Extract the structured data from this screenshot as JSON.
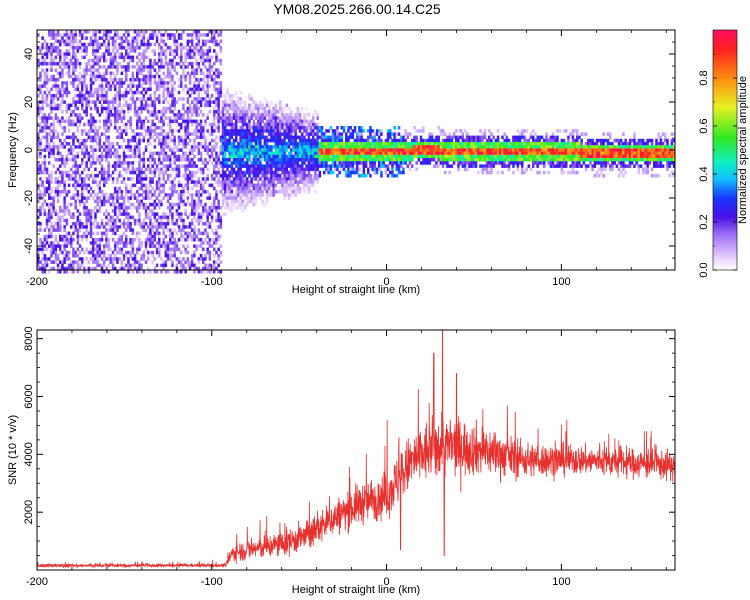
{
  "title": "YM08.2025.266.00.14.C25",
  "chart_data": [
    {
      "type": "heatmap",
      "name": "spectrogram",
      "xlabel": "Height of straight line (km)",
      "ylabel": "Frequency (Hz)",
      "xlim": [
        -200,
        165
      ],
      "ylim": [
        -50,
        50
      ],
      "xticks": [
        -200,
        -100,
        0,
        100
      ],
      "yticks": [
        -40,
        -20,
        0,
        20,
        40
      ],
      "colorbar": {
        "label": "Normalized spectral amplitude",
        "range": [
          0,
          1
        ],
        "ticks": [
          0.0,
          0.2,
          0.4,
          0.6,
          0.8
        ]
      },
      "regions": [
        {
          "x_range": [
            -200,
            -95
          ],
          "description": "diffuse low-amplitude noise across all frequencies"
        },
        {
          "x_range": [
            -100,
            -40
          ],
          "freq_center": 0,
          "freq_halfwidth": 20,
          "amplitude": 0.25
        },
        {
          "x_range": [
            -40,
            165
          ],
          "freq_center": 0,
          "freq_halfwidth": 4,
          "amplitude": 0.9
        }
      ]
    },
    {
      "type": "line",
      "name": "snr",
      "xlabel": "Height of straight line (km)",
      "ylabel": "SNR (10 * v/v)",
      "xlim": [
        -200,
        165
      ],
      "ylim": [
        0,
        8300
      ],
      "xticks": [
        -200,
        -100,
        0,
        100
      ],
      "yticks": [
        2000,
        4000,
        6000,
        8000
      ],
      "color": "#e8312f",
      "envelope": [
        {
          "x": -200,
          "mean": 150,
          "noise": 60
        },
        {
          "x": -92,
          "mean": 160,
          "noise": 60
        },
        {
          "x": -88,
          "mean": 600,
          "noise": 300
        },
        {
          "x": -60,
          "mean": 900,
          "noise": 450
        },
        {
          "x": -45,
          "mean": 1200,
          "noise": 500
        },
        {
          "x": -30,
          "mean": 1800,
          "noise": 600
        },
        {
          "x": -15,
          "mean": 2300,
          "noise": 700
        },
        {
          "x": 0,
          "mean": 2600,
          "noise": 800
        },
        {
          "x": 15,
          "mean": 3800,
          "noise": 1000
        },
        {
          "x": 30,
          "mean": 4300,
          "noise": 1100
        },
        {
          "x": 50,
          "mean": 4200,
          "noise": 900
        },
        {
          "x": 80,
          "mean": 3800,
          "noise": 600
        },
        {
          "x": 110,
          "mean": 3800,
          "noise": 500
        },
        {
          "x": 140,
          "mean": 3700,
          "noise": 500
        },
        {
          "x": 165,
          "mean": 3600,
          "noise": 500
        }
      ],
      "peaks": [
        {
          "x": 32,
          "y": 8300
        },
        {
          "x": 27,
          "y": 7500
        },
        {
          "x": 40,
          "y": 6800
        },
        {
          "x": 8,
          "y": 6200
        },
        {
          "x": 33,
          "y": 500
        },
        {
          "x": 8,
          "y": 700
        }
      ]
    }
  ]
}
